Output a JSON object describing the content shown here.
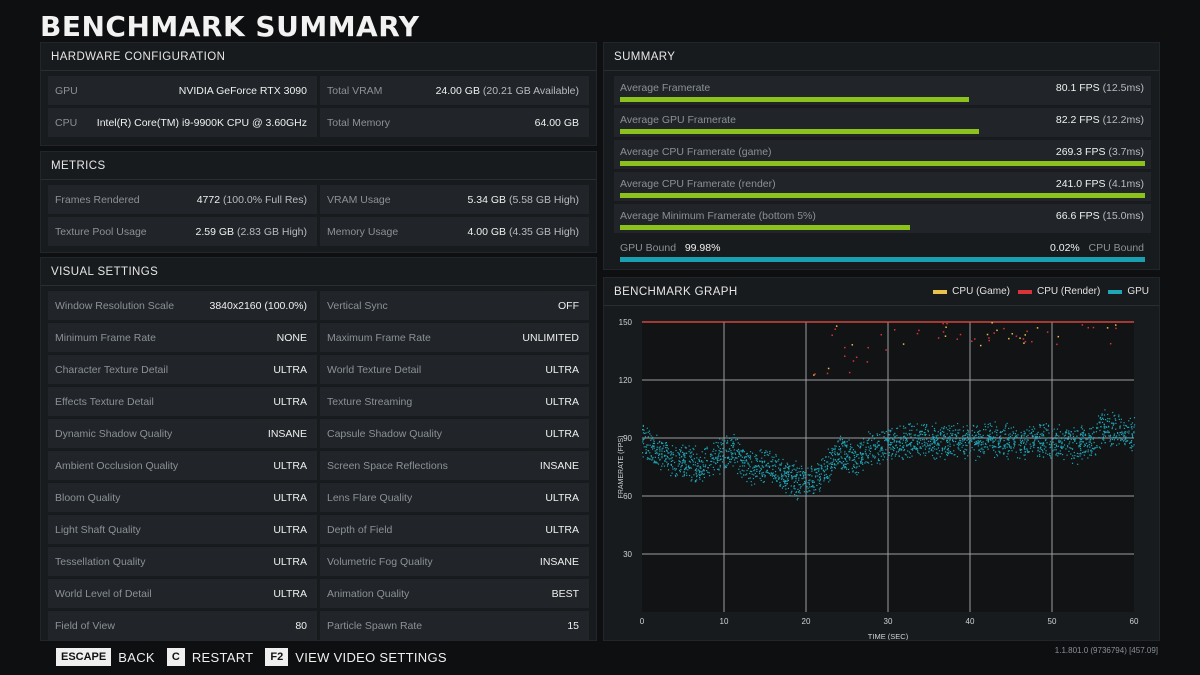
{
  "title": "BENCHMARK SUMMARY",
  "hardware": {
    "header": "HARDWARE CONFIGURATION",
    "rows": [
      [
        {
          "label": "GPU",
          "value": "NVIDIA GeForce RTX 3090",
          "sub": ""
        },
        {
          "label": "Total VRAM",
          "value": "24.00 GB",
          "sub": "(20.21 GB Available)"
        }
      ],
      [
        {
          "label": "CPU",
          "value": "Intel(R) Core(TM) i9-9900K CPU @ 3.60GHz",
          "sub": ""
        },
        {
          "label": "Total Memory",
          "value": "64.00 GB",
          "sub": ""
        }
      ]
    ]
  },
  "metrics": {
    "header": "METRICS",
    "rows": [
      [
        {
          "label": "Frames Rendered",
          "value": "4772",
          "sub": "(100.0% Full Res)"
        },
        {
          "label": "VRAM Usage",
          "value": "5.34 GB",
          "sub": "(5.58 GB High)"
        }
      ],
      [
        {
          "label": "Texture Pool Usage",
          "value": "2.59 GB",
          "sub": "(2.83 GB High)"
        },
        {
          "label": "Memory Usage",
          "value": "4.00 GB",
          "sub": "(4.35 GB High)"
        }
      ]
    ]
  },
  "visual": {
    "header": "VISUAL SETTINGS",
    "rows": [
      [
        {
          "label": "Window Resolution Scale",
          "value": "3840x2160 (100.0%)"
        },
        {
          "label": "Vertical Sync",
          "value": "OFF"
        }
      ],
      [
        {
          "label": "Minimum Frame Rate",
          "value": "NONE"
        },
        {
          "label": "Maximum Frame Rate",
          "value": "UNLIMITED"
        }
      ],
      [
        {
          "label": "Character Texture Detail",
          "value": "ULTRA"
        },
        {
          "label": "World Texture Detail",
          "value": "ULTRA"
        }
      ],
      [
        {
          "label": "Effects Texture Detail",
          "value": "ULTRA"
        },
        {
          "label": "Texture Streaming",
          "value": "ULTRA"
        }
      ],
      [
        {
          "label": "Dynamic Shadow Quality",
          "value": "INSANE"
        },
        {
          "label": "Capsule Shadow Quality",
          "value": "ULTRA"
        }
      ],
      [
        {
          "label": "Ambient Occlusion Quality",
          "value": "ULTRA"
        },
        {
          "label": "Screen Space Reflections",
          "value": "INSANE"
        }
      ],
      [
        {
          "label": "Bloom Quality",
          "value": "ULTRA"
        },
        {
          "label": "Lens Flare Quality",
          "value": "ULTRA"
        }
      ],
      [
        {
          "label": "Light Shaft Quality",
          "value": "ULTRA"
        },
        {
          "label": "Depth of Field",
          "value": "ULTRA"
        }
      ],
      [
        {
          "label": "Tessellation Quality",
          "value": "ULTRA"
        },
        {
          "label": "Volumetric Fog Quality",
          "value": "INSANE"
        }
      ],
      [
        {
          "label": "World Level of Detail",
          "value": "ULTRA"
        },
        {
          "label": "Animation Quality",
          "value": "BEST"
        }
      ],
      [
        {
          "label": "Field of View",
          "value": "80"
        },
        {
          "label": "Particle Spawn Rate",
          "value": "15"
        }
      ]
    ]
  },
  "summary": {
    "header": "SUMMARY",
    "rows": [
      {
        "label": "Average Framerate",
        "value": "80.1 FPS",
        "sub": "(12.5ms)",
        "fill": 0.665
      },
      {
        "label": "Average GPU Framerate",
        "value": "82.2 FPS",
        "sub": "(12.2ms)",
        "fill": 0.683
      },
      {
        "label": "Average CPU Framerate (game)",
        "value": "269.3 FPS",
        "sub": "(3.7ms)",
        "fill": 1.0
      },
      {
        "label": "Average CPU Framerate (render)",
        "value": "241.0 FPS",
        "sub": "(4.1ms)",
        "fill": 1.0
      },
      {
        "label": "Average Minimum Framerate (bottom 5%)",
        "value": "66.6 FPS",
        "sub": "(15.0ms)",
        "fill": 0.553
      }
    ],
    "bound": {
      "gpu_label": "GPU Bound",
      "gpu_value": "99.98%",
      "cpu_value": "0.02%",
      "cpu_label": "CPU Bound"
    }
  },
  "graph": {
    "header": "BENCHMARK GRAPH",
    "legend": [
      {
        "name": "CPU (Game)",
        "color": "#e8c24a"
      },
      {
        "name": "CPU (Render)",
        "color": "#d8343a"
      },
      {
        "name": "GPU",
        "color": "#1fa7b8"
      }
    ],
    "ylabel": "FRAMERATE (FPS)",
    "xlabel": "TIME (SEC)"
  },
  "chart_data": {
    "type": "scatter",
    "xlabel": "TIME (SEC)",
    "ylabel": "FRAMERATE (FPS)",
    "xlim": [
      0,
      60
    ],
    "ylim": [
      0,
      150
    ],
    "x_ticks": [
      0,
      10,
      20,
      30,
      40,
      50,
      60
    ],
    "y_ticks": [
      30,
      60,
      90,
      120,
      150
    ],
    "grid": true,
    "legend_position": "top-right",
    "series": [
      {
        "name": "CPU (Game)",
        "color": "#e8c24a",
        "x": [
          0,
          60
        ],
        "y": [
          150,
          150
        ]
      },
      {
        "name": "CPU (Render)",
        "color": "#d8343a",
        "x": [
          0,
          60
        ],
        "y": [
          150,
          150
        ]
      },
      {
        "name": "GPU",
        "color": "#1fa7b8",
        "x": [
          0,
          1,
          2,
          3,
          4,
          5,
          6,
          7,
          8,
          9,
          10,
          11,
          12,
          13,
          14,
          15,
          16,
          17,
          18,
          19,
          20,
          21,
          22,
          23,
          24,
          25,
          26,
          27,
          28,
          29,
          30,
          31,
          32,
          33,
          34,
          35,
          36,
          37,
          38,
          39,
          40,
          41,
          42,
          43,
          44,
          45,
          46,
          47,
          48,
          49,
          50,
          51,
          52,
          53,
          54,
          55,
          56,
          57,
          58,
          59,
          60
        ],
        "y": [
          90,
          84,
          82,
          80,
          78,
          79,
          77,
          76,
          78,
          80,
          82,
          84,
          79,
          76,
          74,
          76,
          73,
          72,
          70,
          68,
          67,
          69,
          72,
          78,
          84,
          82,
          78,
          82,
          86,
          85,
          88,
          87,
          88,
          89,
          89,
          89,
          88,
          88,
          89,
          88,
          89,
          88,
          89,
          89,
          88,
          89,
          88,
          89,
          88,
          89,
          89,
          88,
          87,
          86,
          88,
          89,
          96,
          95,
          94,
          94,
          92
        ]
      }
    ]
  },
  "footer": {
    "back_key": "ESCAPE",
    "back_label": "BACK",
    "restart_key": "C",
    "restart_label": "RESTART",
    "video_key": "F2",
    "video_label": "VIEW VIDEO SETTINGS"
  },
  "version": "1.1.801.0 (9736794) [457.09]"
}
